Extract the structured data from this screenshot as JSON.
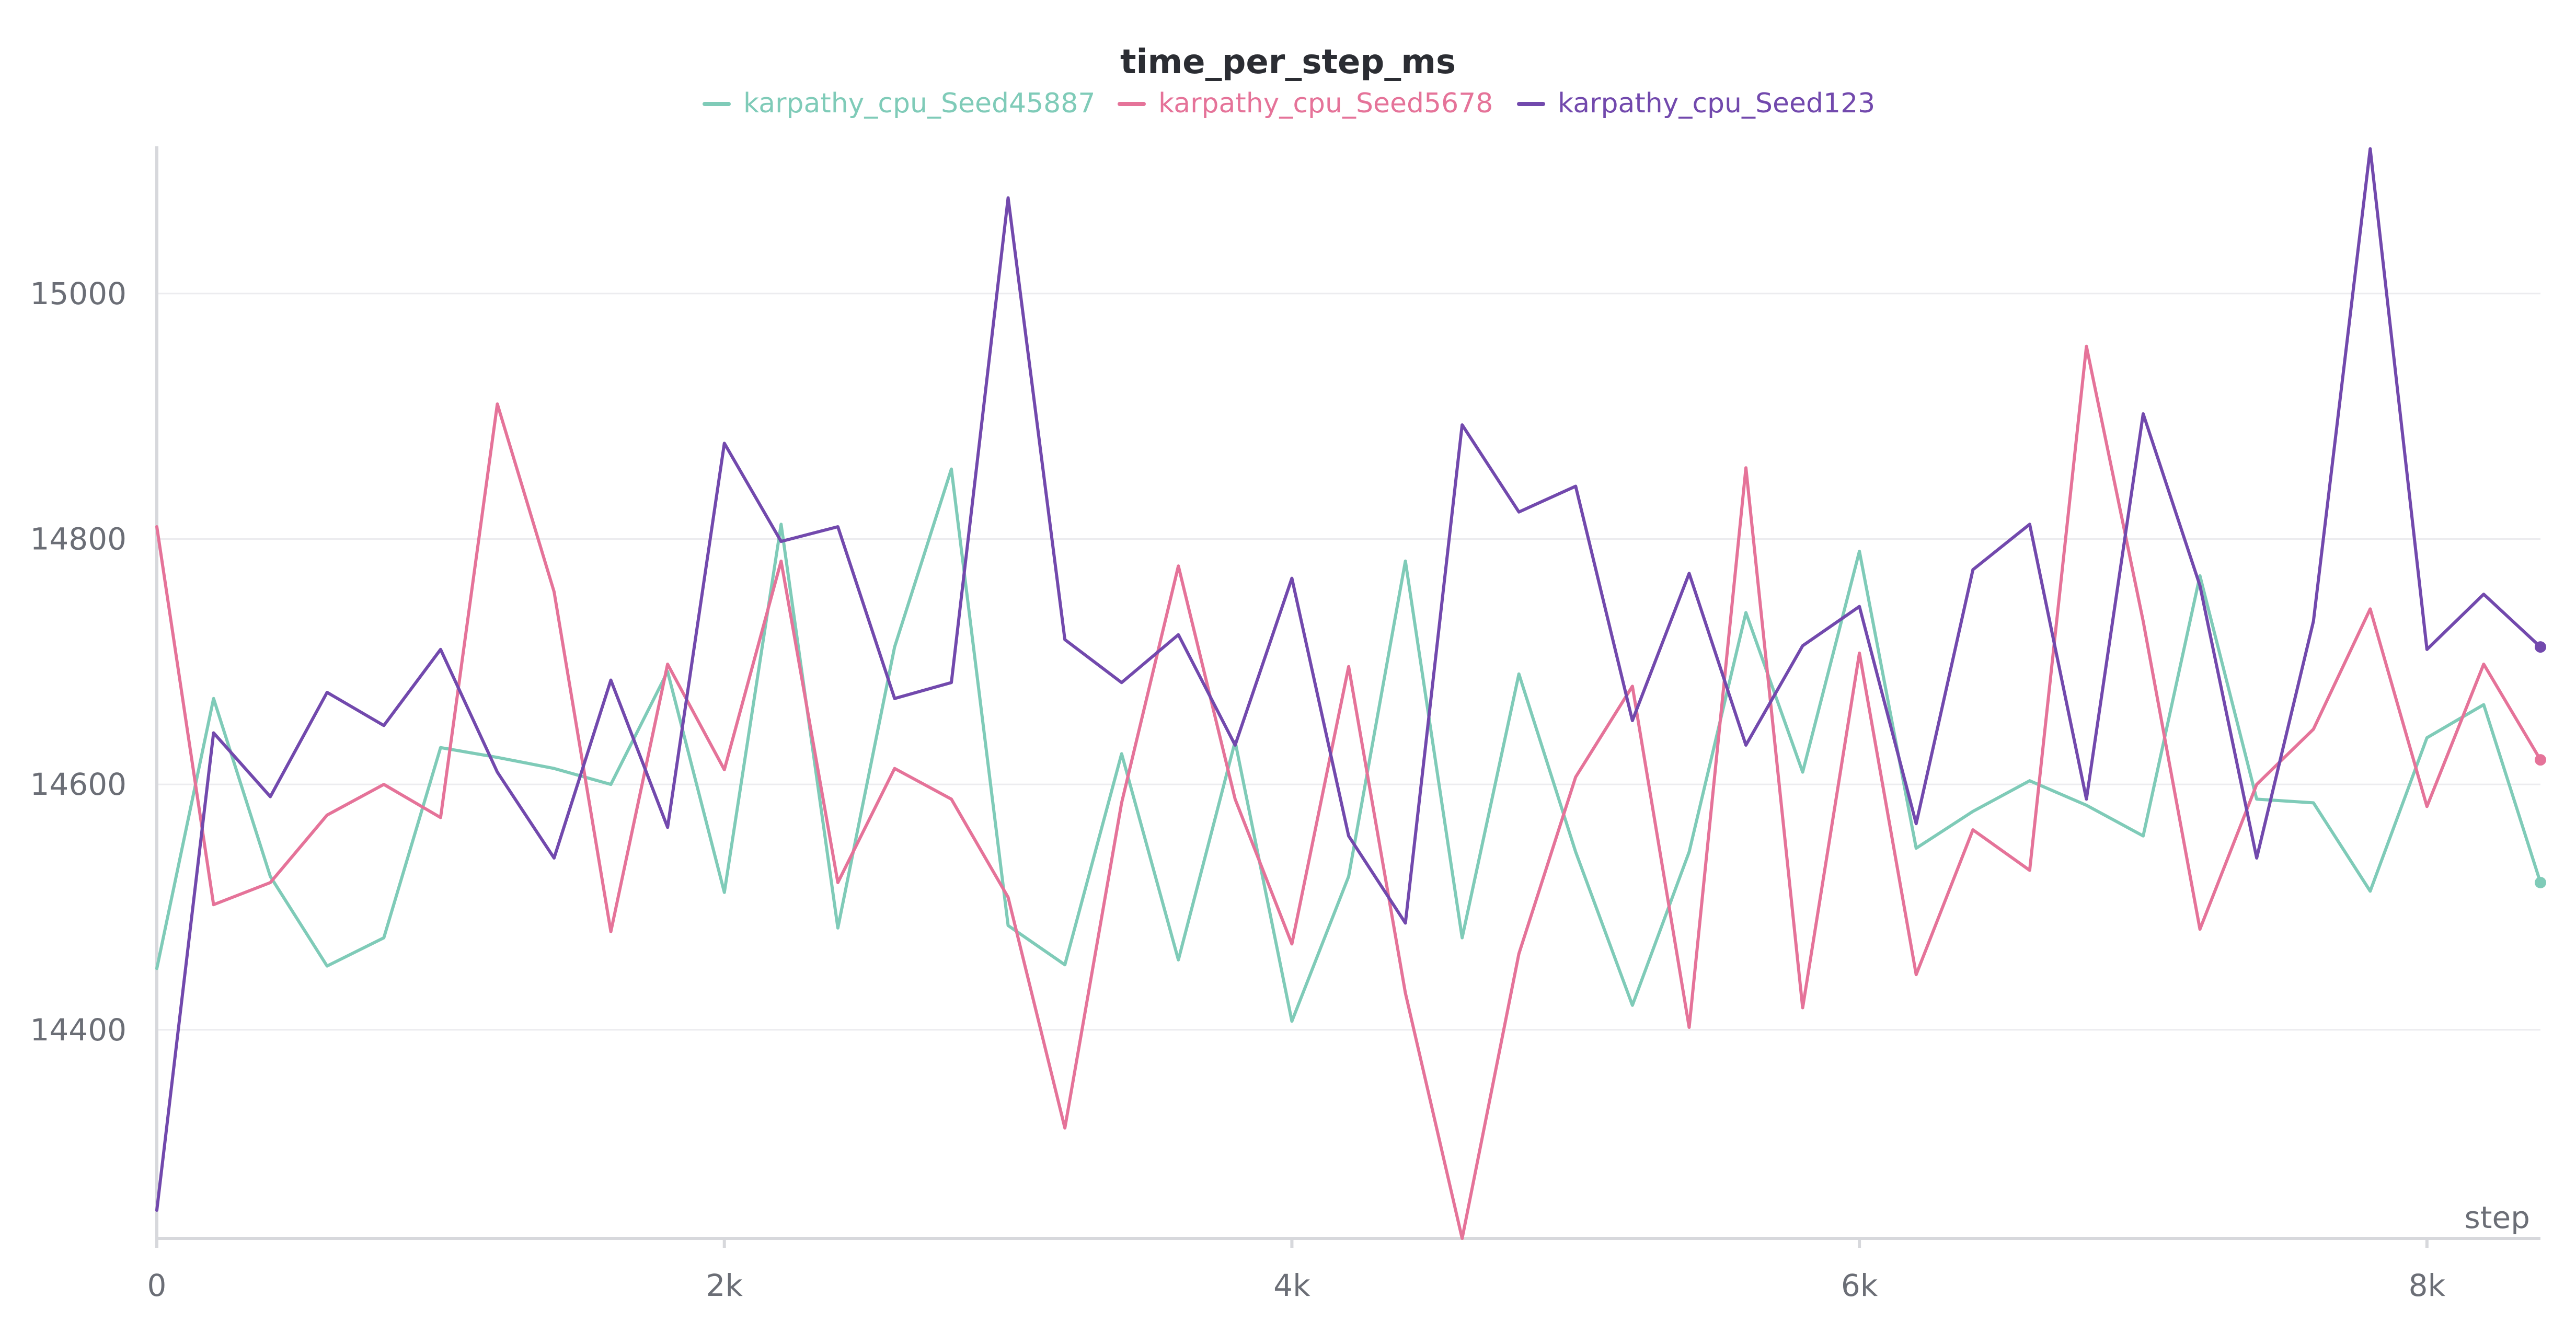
{
  "chart_data": {
    "type": "line",
    "title": "time_per_step_ms",
    "xlabel": "step",
    "ylabel": "",
    "xlim": [
      0,
      8400
    ],
    "ylim": [
      14230,
      15120
    ],
    "x_ticks": [
      0,
      2000,
      4000,
      6000,
      8000
    ],
    "x_tick_labels": [
      "0",
      "2k",
      "4k",
      "6k",
      "8k"
    ],
    "y_ticks": [
      14400,
      14600,
      14800,
      15000
    ],
    "y_tick_labels": [
      "14400",
      "14600",
      "14800",
      "15000"
    ],
    "grid": true,
    "legend_position": "top-center",
    "x": [
      0,
      200,
      400,
      600,
      800,
      1000,
      1200,
      1400,
      1600,
      1800,
      2000,
      2200,
      2400,
      2600,
      2800,
      3000,
      3200,
      3400,
      3600,
      3800,
      4000,
      4200,
      4400,
      4600,
      4800,
      5000,
      5200,
      5400,
      5600,
      5800,
      6000,
      6200,
      6400,
      6600,
      6800,
      7000,
      7200,
      7400,
      7600,
      7800,
      8000,
      8200,
      8400
    ],
    "series": [
      {
        "name": "karpathy_cpu_Seed45887",
        "color": "#7fcbb8",
        "values": [
          14450,
          14670,
          14525,
          14452,
          14475,
          14630,
          14622,
          14613,
          14600,
          14692,
          14512,
          14812,
          14483,
          14712,
          14857,
          14485,
          14453,
          14625,
          14457,
          14635,
          14407,
          14525,
          14782,
          14475,
          14690,
          14545,
          14420,
          14545,
          14740,
          14610,
          14790,
          14548,
          14578,
          14603,
          14583,
          14558,
          14770,
          14588,
          14585,
          14513,
          14638,
          14665,
          14520
        ]
      },
      {
        "name": "karpathy_cpu_Seed5678",
        "color": "#e57399",
        "values": [
          14810,
          14502,
          14520,
          14575,
          14600,
          14573,
          14910,
          14757,
          14480,
          14698,
          14612,
          14782,
          14520,
          14613,
          14588,
          14508,
          14320,
          14585,
          14778,
          14588,
          14470,
          14696,
          14430,
          14230,
          14462,
          14606,
          14680,
          14402,
          14858,
          14418,
          14707,
          14445,
          14563,
          14530,
          14957,
          14733,
          14482,
          14600,
          14645,
          14743,
          14582,
          14698,
          14620
        ]
      },
      {
        "name": "karpathy_cpu_Seed123",
        "color": "#7249ad",
        "values": [
          14253,
          14642,
          14590,
          14675,
          14648,
          14710,
          14610,
          14540,
          14685,
          14565,
          14878,
          14798,
          14810,
          14670,
          14683,
          15078,
          14718,
          14683,
          14722,
          14632,
          14768,
          14558,
          14487,
          14893,
          14822,
          14843,
          14652,
          14772,
          14632,
          14713,
          14745,
          14568,
          14775,
          14812,
          14588,
          14902,
          14762,
          14540,
          14733,
          15118,
          14710,
          14755,
          14712
        ]
      }
    ]
  }
}
